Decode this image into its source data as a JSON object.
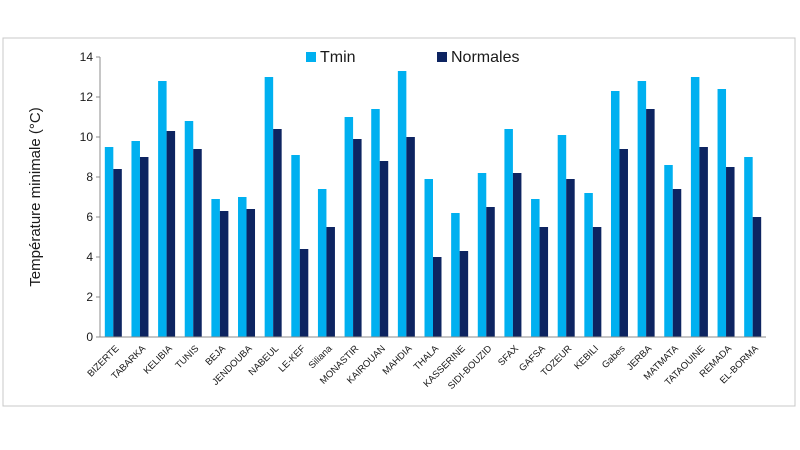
{
  "chart_data": {
    "type": "bar",
    "title": "",
    "xlabel": "",
    "ylabel": "Température minimale (°C)",
    "ylim": [
      0,
      14
    ],
    "yticks": [
      0,
      2,
      4,
      6,
      8,
      10,
      12,
      14
    ],
    "grid": false,
    "legend_position": "top-center",
    "categories": [
      "BIZERTE",
      "TABARKA",
      "KELIBIA",
      "TUNIS",
      "BEJA",
      "JENDOUBA",
      "NABEUL",
      "LE-KEF",
      "Siliana",
      "MONASTIR",
      "KAIROUAN",
      "MAHDIA",
      "THALA",
      "KASSERINE",
      "SIDI-BOUZID",
      "SFAX",
      "GAFSA",
      "TOZEUR",
      "KEBILI",
      "Gabes",
      "JERBA",
      "MATMATA",
      "TATAOUINE",
      "REMADA",
      "EL-BORMA"
    ],
    "series": [
      {
        "name": "Tmin",
        "color": "#00b0f0",
        "values": [
          9.5,
          9.8,
          12.8,
          10.8,
          6.9,
          7.0,
          13.0,
          9.1,
          7.4,
          11.0,
          11.4,
          13.3,
          7.9,
          6.2,
          8.2,
          10.4,
          6.9,
          10.1,
          7.2,
          12.3,
          12.8,
          8.6,
          13.0,
          12.4,
          9.0
        ]
      },
      {
        "name": "Normales",
        "color": "#0d2461",
        "values": [
          8.4,
          9.0,
          10.3,
          9.4,
          6.3,
          6.4,
          10.4,
          4.4,
          5.5,
          9.9,
          8.8,
          10.0,
          4.0,
          4.3,
          6.5,
          8.2,
          5.5,
          7.9,
          5.5,
          9.4,
          11.4,
          7.4,
          9.5,
          8.5,
          6.0
        ]
      }
    ]
  }
}
